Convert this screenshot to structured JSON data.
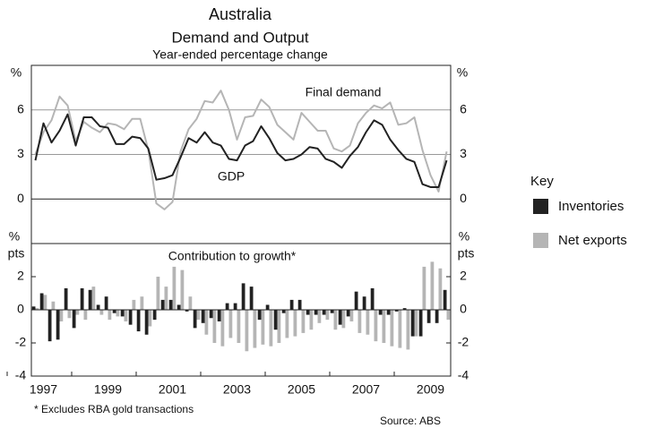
{
  "chart_data": [
    {
      "type": "line",
      "title": "Australia",
      "subtitle": "Demand and Output",
      "caption": "Year-ended percentage change",
      "y_unit": "%",
      "categories": [
        null,
        "1997",
        null,
        null,
        null,
        null,
        null,
        null,
        null,
        "1999",
        null,
        null,
        null,
        null,
        null,
        null,
        null,
        "2001",
        null,
        null,
        null,
        null,
        null,
        null,
        null,
        "2003",
        null,
        null,
        null,
        null,
        null,
        null,
        null,
        "2005",
        null,
        null,
        null,
        null,
        null,
        null,
        null,
        "2007",
        null,
        null,
        null,
        null,
        null,
        null,
        null,
        "2009",
        null,
        null
      ],
      "ylim": [
        -3,
        9
      ],
      "yticks": [
        0,
        3,
        6
      ],
      "grid": true,
      "series": [
        {
          "name": "Final demand",
          "color": "#b5b5b5",
          "values": [
            3.0,
            4.5,
            5.3,
            6.9,
            6.3,
            3.9,
            5.2,
            4.8,
            4.5,
            5.1,
            5.0,
            4.7,
            5.4,
            5.4,
            3.3,
            -0.3,
            -0.7,
            -0.2,
            3.2,
            4.7,
            5.4,
            6.6,
            6.5,
            7.3,
            6.0,
            4.0,
            5.5,
            5.6,
            6.7,
            6.2,
            5.0,
            4.5,
            4.0,
            5.8,
            5.2,
            4.6,
            4.6,
            3.4,
            3.2,
            3.6,
            5.1,
            5.8,
            6.3,
            6.1,
            6.5,
            5.0,
            5.1,
            5.5,
            3.3,
            1.6,
            0.5,
            3.2
          ]
        },
        {
          "name": "GDP",
          "color": "#222222",
          "values": [
            2.6,
            5.1,
            3.8,
            4.6,
            5.7,
            3.6,
            5.5,
            5.5,
            4.9,
            4.8,
            3.7,
            3.7,
            4.2,
            4.1,
            3.4,
            1.3,
            1.4,
            1.6,
            2.8,
            4.1,
            3.8,
            4.5,
            3.8,
            3.6,
            2.7,
            2.6,
            3.6,
            3.9,
            4.9,
            4.1,
            3.1,
            2.6,
            2.7,
            3.0,
            3.5,
            3.4,
            2.7,
            2.5,
            2.1,
            2.9,
            3.5,
            4.5,
            5.3,
            5.0,
            4.0,
            3.3,
            2.7,
            2.5,
            1.0,
            0.8,
            0.8,
            2.6
          ]
        }
      ]
    },
    {
      "type": "bar",
      "title": "Contribution to growth*",
      "y_unit": [
        "%",
        "pts"
      ],
      "categories": [
        null,
        "1997",
        null,
        null,
        null,
        null,
        null,
        null,
        null,
        "1999",
        null,
        null,
        null,
        null,
        null,
        null,
        null,
        "2001",
        null,
        null,
        null,
        null,
        null,
        null,
        null,
        "2003",
        null,
        null,
        null,
        null,
        null,
        null,
        null,
        "2005",
        null,
        null,
        null,
        null,
        null,
        null,
        null,
        "2007",
        null,
        null,
        null,
        null,
        null,
        null,
        null,
        "2009",
        null,
        null
      ],
      "ylim": [
        -4,
        4
      ],
      "yticks": [
        -4,
        -2,
        0,
        2
      ],
      "legend_title": "Key",
      "series": [
        {
          "name": "Inventories",
          "color": "#222222",
          "values": [
            0.2,
            1.0,
            -1.9,
            -1.8,
            1.3,
            -1.1,
            1.3,
            1.2,
            0.3,
            0.8,
            -0.2,
            -0.4,
            -0.9,
            -1.3,
            -1.5,
            -0.6,
            0.6,
            0.6,
            0.3,
            -0.1,
            -1.1,
            -0.8,
            -0.5,
            -0.7,
            0.4,
            0.4,
            1.6,
            1.4,
            -0.6,
            0.3,
            -1.2,
            -0.2,
            0.6,
            0.6,
            -0.3,
            -0.3,
            -0.3,
            -0.2,
            -0.9,
            -0.4,
            1.1,
            0.8,
            1.3,
            -0.3,
            -0.3,
            -0.1,
            0.1,
            -1.6,
            -1.6,
            -0.8,
            -0.8,
            1.2
          ]
        },
        {
          "name": "Net exports",
          "color": "#b5b5b5",
          "values": [
            0.1,
            0.9,
            0.5,
            -0.7,
            -0.5,
            -0.3,
            -0.6,
            1.4,
            -0.3,
            -0.6,
            -0.4,
            -0.7,
            0.6,
            0.8,
            -1.0,
            2.0,
            1.4,
            2.6,
            2.4,
            0.8,
            -0.6,
            -1.5,
            -2.0,
            -2.2,
            -1.7,
            -2.0,
            -2.5,
            -2.3,
            -2.1,
            -2.2,
            -2.0,
            -1.7,
            -1.6,
            -1.4,
            -1.2,
            -0.8,
            -0.6,
            -1.2,
            -1.1,
            -0.7,
            -1.4,
            -1.5,
            -1.9,
            -2.0,
            -2.2,
            -2.3,
            -2.4,
            -1.6,
            2.6,
            2.9,
            2.5,
            -0.6
          ]
        }
      ],
      "footnote": "*   Excludes RBA gold transactions",
      "source": "Source: ABS"
    }
  ]
}
